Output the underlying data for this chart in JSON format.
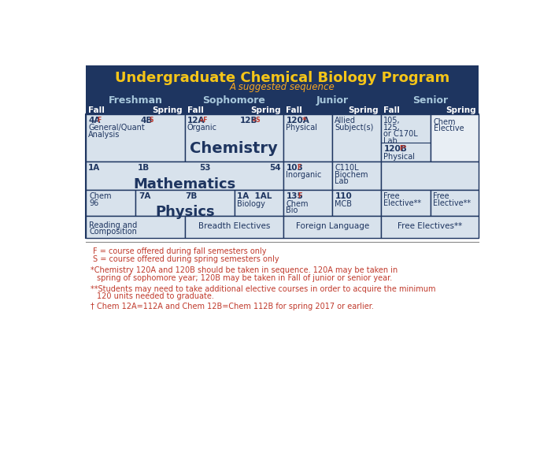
{
  "title": "Undergraduate Chemical Biology Program",
  "subtitle": "A suggested sequence",
  "title_bg": "#1e3560",
  "title_color": "#f5c518",
  "subtitle_color": "#f5a623",
  "header_bg": "#1e3560",
  "header_color": "#a8c4d8",
  "cell_bg": "#d8e2ec",
  "cell_border": "#1e3560",
  "white_bg": "#e8eef4",
  "notes_red": "#c0392b",
  "notes_dark": "#1e3560",
  "year_headers": [
    "Freshman",
    "Sophomore",
    "Junior",
    "Senior"
  ],
  "semester_headers": [
    "Fall",
    "Spring",
    "Fall",
    "Spring",
    "Fall",
    "Spring",
    "Fall",
    "Spring"
  ]
}
